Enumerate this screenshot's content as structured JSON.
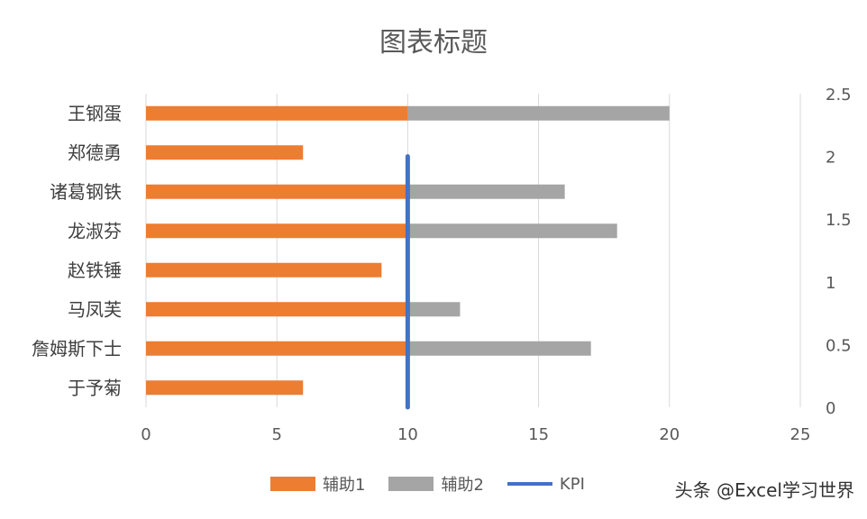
{
  "chart_data": {
    "type": "bar",
    "title": "图表标题",
    "categories": [
      "王钢蛋",
      "郑德勇",
      "诸葛钢铁",
      "龙淑芬",
      "赵铁锤",
      "马凤芙",
      "詹姆斯下士",
      "于予菊"
    ],
    "series": [
      {
        "name": "辅助1",
        "values": [
          10,
          6,
          10,
          10,
          9,
          10,
          10,
          6
        ],
        "color": "#ED7D31"
      },
      {
        "name": "辅助2",
        "values": [
          10,
          0,
          6,
          8,
          0,
          2,
          7,
          0
        ],
        "color": "#A5A5A5"
      },
      {
        "name": "KPI",
        "type": "line",
        "x": [
          10,
          10
        ],
        "y": [
          0,
          2
        ],
        "color": "#4472C4"
      }
    ],
    "xlim": [
      0,
      25
    ],
    "xticks": [
      "0",
      "5",
      "10",
      "15",
      "20",
      "25"
    ],
    "y2lim": [
      0,
      2.5
    ],
    "y2ticks": [
      "0",
      "0.5",
      "1",
      "1.5",
      "2",
      "2.5"
    ],
    "stacked": true,
    "orientation": "horizontal",
    "grid": true,
    "legend_position": "bottom"
  },
  "watermark": "头条 @Excel学习世界"
}
